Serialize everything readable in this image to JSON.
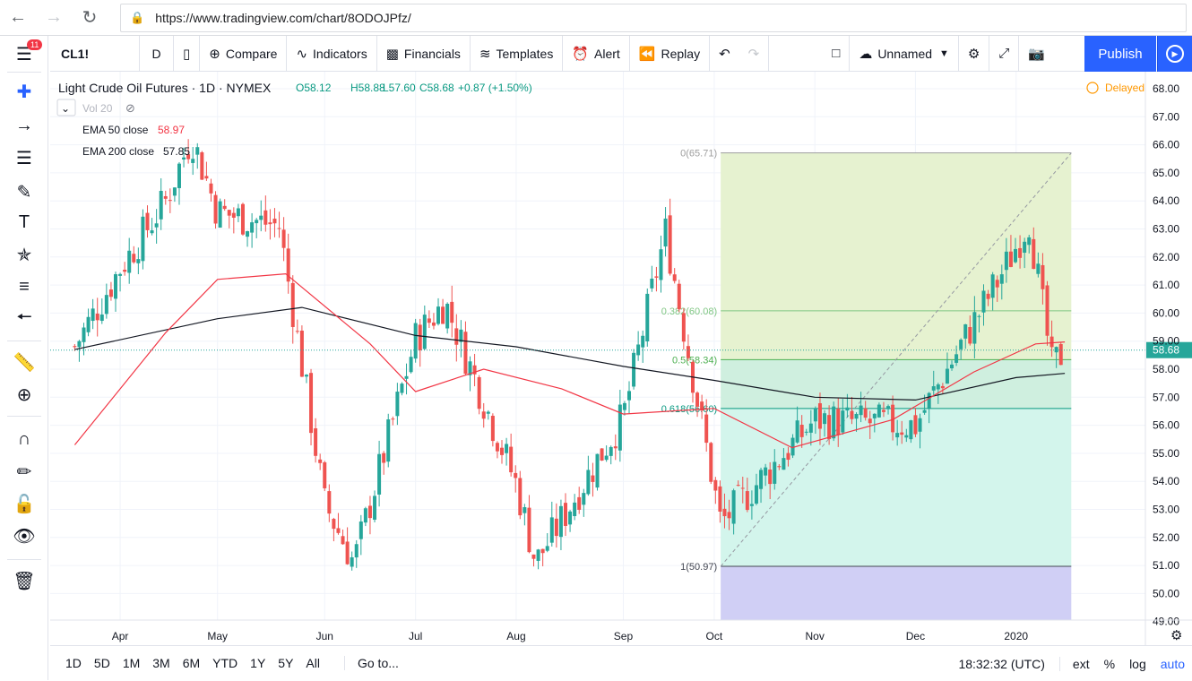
{
  "browser": {
    "url": "https://www.tradingview.com/chart/8ODOJPfz/"
  },
  "toolbar": {
    "symbol": "CL1!",
    "interval": "D",
    "compare": "Compare",
    "indicators": "Indicators",
    "financials": "Financials",
    "templates": "Templates",
    "alert": "Alert",
    "replay": "Replay",
    "layout_name": "Unnamed",
    "publish": "Publish"
  },
  "left_rail": {
    "badge": "11"
  },
  "legend": {
    "title": "Light Crude Oil Futures · 1D · NYMEX",
    "o": "O58.12",
    "h": "H58.88",
    "l": "L57.60",
    "c": "C58.68",
    "chg": "+0.87 (+1.50%)",
    "vol": "Vol 20",
    "ema50_label": "EMA 50 close",
    "ema50_value": "58.97",
    "ema200_label": "EMA 200 close",
    "ema200_value": "57.85",
    "delayed": "Delayed"
  },
  "bottom": {
    "ranges": [
      "1D",
      "5D",
      "1M",
      "3M",
      "6M",
      "YTD",
      "1Y",
      "5Y",
      "All"
    ],
    "goto": "Go to...",
    "time": "18:32:32 (UTC)",
    "ext": "ext",
    "pct": "%",
    "log": "log",
    "auto": "auto"
  },
  "colors": {
    "up": "#26a69a",
    "down": "#ef5350",
    "ema50": "#f23645",
    "ema200": "#131722",
    "accent": "#2962ff"
  },
  "chart_data": {
    "type": "candlestick",
    "ylim": [
      49,
      68
    ],
    "y_ticks": [
      49,
      50,
      51,
      52,
      53,
      54,
      55,
      56,
      57,
      58,
      59,
      60,
      61,
      62,
      63,
      64,
      65,
      66,
      67,
      68
    ],
    "x_ticks": [
      {
        "label": "Apr",
        "date": "2019-04-01"
      },
      {
        "label": "May",
        "date": "2019-05-01"
      },
      {
        "label": "Jun",
        "date": "2019-06-03"
      },
      {
        "label": "Jul",
        "date": "2019-07-01"
      },
      {
        "label": "Aug",
        "date": "2019-08-01"
      },
      {
        "label": "Sep",
        "date": "2019-09-03"
      },
      {
        "label": "Oct",
        "date": "2019-10-01"
      },
      {
        "label": "Nov",
        "date": "2019-11-01"
      },
      {
        "label": "Dec",
        "date": "2019-12-02"
      },
      {
        "label": "2020",
        "date": "2020-01-02"
      }
    ],
    "last_price": 58.68,
    "ohlc_sample": [
      {
        "date": "2019-03-18",
        "close": 58.8
      },
      {
        "date": "2019-04-01",
        "close": 61.6
      },
      {
        "date": "2019-04-15",
        "close": 64.0
      },
      {
        "date": "2019-04-23",
        "close": 66.3
      },
      {
        "date": "2019-05-01",
        "close": 63.6
      },
      {
        "date": "2019-05-20",
        "close": 63.1
      },
      {
        "date": "2019-06-03",
        "close": 53.2
      },
      {
        "date": "2019-06-12",
        "close": 51.1
      },
      {
        "date": "2019-07-01",
        "close": 59.1
      },
      {
        "date": "2019-07-10",
        "close": 60.4
      },
      {
        "date": "2019-08-01",
        "close": 53.9
      },
      {
        "date": "2019-08-07",
        "close": 51.1
      },
      {
        "date": "2019-09-03",
        "close": 56.3
      },
      {
        "date": "2019-09-16",
        "close": 62.9
      },
      {
        "date": "2019-10-03",
        "close": 52.5
      },
      {
        "date": "2019-11-01",
        "close": 56.2
      },
      {
        "date": "2019-12-02",
        "close": 56.0
      },
      {
        "date": "2019-12-30",
        "close": 61.7
      },
      {
        "date": "2020-01-06",
        "close": 63.3
      },
      {
        "date": "2020-01-13",
        "close": 58.1
      },
      {
        "date": "2020-01-17",
        "close": 58.68
      }
    ],
    "ema50": [
      {
        "date": "2019-03-18",
        "value": 55.3
      },
      {
        "date": "2019-04-15",
        "value": 59.3
      },
      {
        "date": "2019-05-01",
        "value": 61.2
      },
      {
        "date": "2019-05-22",
        "value": 61.4
      },
      {
        "date": "2019-06-17",
        "value": 58.9
      },
      {
        "date": "2019-07-01",
        "value": 57.2
      },
      {
        "date": "2019-07-22",
        "value": 58.0
      },
      {
        "date": "2019-08-15",
        "value": 57.3
      },
      {
        "date": "2019-09-03",
        "value": 56.4
      },
      {
        "date": "2019-10-01",
        "value": 56.6
      },
      {
        "date": "2019-10-25",
        "value": 55.2
      },
      {
        "date": "2019-11-25",
        "value": 56.2
      },
      {
        "date": "2019-12-20",
        "value": 57.9
      },
      {
        "date": "2020-01-08",
        "value": 58.9
      },
      {
        "date": "2020-01-17",
        "value": 58.97
      }
    ],
    "ema200": [
      {
        "date": "2019-03-18",
        "value": 58.7
      },
      {
        "date": "2019-05-01",
        "value": 59.8
      },
      {
        "date": "2019-05-27",
        "value": 60.2
      },
      {
        "date": "2019-07-01",
        "value": 59.2
      },
      {
        "date": "2019-08-01",
        "value": 58.8
      },
      {
        "date": "2019-09-03",
        "value": 58.1
      },
      {
        "date": "2019-10-01",
        "value": 57.6
      },
      {
        "date": "2019-11-01",
        "value": 57.0
      },
      {
        "date": "2019-12-02",
        "value": 56.9
      },
      {
        "date": "2020-01-02",
        "value": 57.7
      },
      {
        "date": "2020-01-17",
        "value": 57.85
      }
    ],
    "fib": {
      "start_date": "2019-10-03",
      "end_date": "2020-01-19",
      "levels": [
        {
          "label": "0(65.71)",
          "price": 65.71,
          "color": "#9e9e9e",
          "fill": "#e6f2d0"
        },
        {
          "label": "0.382(60.08)",
          "price": 60.08,
          "color": "#81c784",
          "fill": "#e6f2d0"
        },
        {
          "label": "0.5(58.34)",
          "price": 58.34,
          "color": "#4caf50",
          "fill": "#cfefdf"
        },
        {
          "label": "0.618(56.60)",
          "price": 56.6,
          "color": "#089981",
          "fill": "#d3f5ec"
        },
        {
          "label": "1(50.97)",
          "price": 50.97,
          "color": "#434651",
          "fill": "#e6e6e6"
        }
      ],
      "below_fill": "#d0cff5"
    }
  }
}
